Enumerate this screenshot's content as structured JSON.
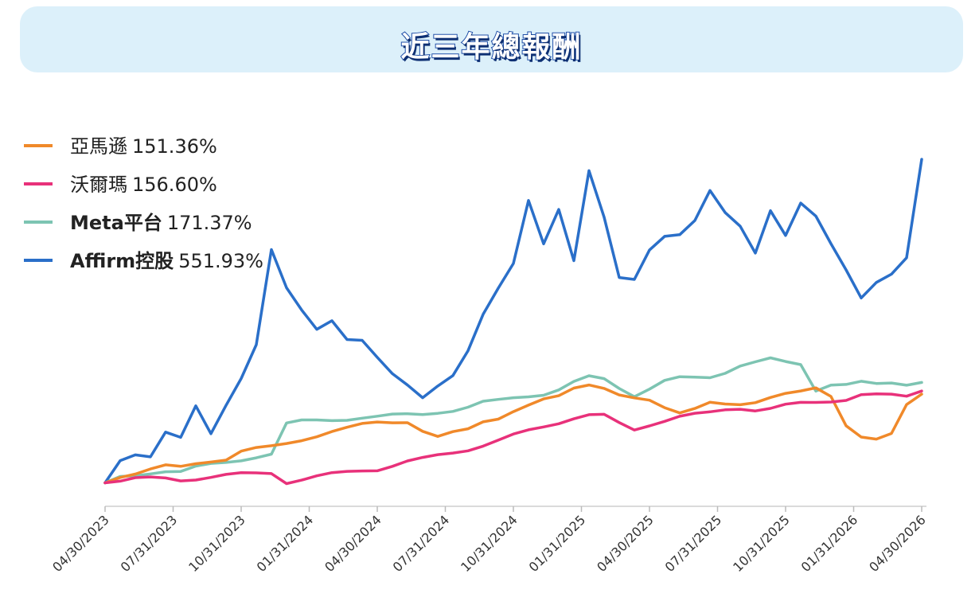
{
  "banner": {
    "title": "近三年總報酬"
  },
  "chart_data": {
    "type": "line",
    "title": "近三年總報酬",
    "xlabel": "",
    "ylabel": "",
    "x_ticks": [
      "04/30/2023",
      "07/31/2023",
      "10/31/2023",
      "01/31/2024",
      "04/30/2024",
      "07/31/2024",
      "10/31/2024",
      "01/31/2025",
      "04/30/2025",
      "07/31/2025",
      "10/31/2025",
      "01/31/2026",
      "04/30/2026"
    ],
    "ylim": [
      -40,
      620
    ],
    "grid": false,
    "legend_position": "top-left",
    "series": [
      {
        "name": "亞馬遜",
        "value_label": "151.36%",
        "color": "#f0892a",
        "values": [
          0,
          12,
          18,
          24,
          28,
          25,
          32,
          38,
          42,
          55,
          58,
          60,
          66,
          74,
          82,
          89,
          93,
          98,
          102,
          104,
          106,
          90,
          78,
          84,
          90,
          105,
          112,
          124,
          132,
          140,
          146,
          162,
          170,
          164,
          150,
          142,
          138,
          128,
          122,
          130,
          138,
          132,
          130,
          136,
          148,
          156,
          158,
          160,
          144,
          96,
          80,
          78,
          86,
          132,
          151.36
        ]
      },
      {
        "name": "沃爾瑪",
        "value_label": "156.60%",
        "color": "#e8317a",
        "values": [
          0,
          3,
          6,
          7,
          8,
          6,
          8,
          10,
          12,
          14,
          16,
          18,
          2,
          6,
          10,
          14,
          18,
          22,
          24,
          30,
          36,
          40,
          46,
          52,
          58,
          65,
          72,
          80,
          88,
          96,
          104,
          112,
          116,
          114,
          100,
          90,
          100,
          108,
          114,
          116,
          118,
          124,
          128,
          126,
          128,
          132,
          134,
          136,
          140,
          144,
          152,
          150,
          148,
          146,
          156.6
        ]
      },
      {
        "name": "Meta平台",
        "value_label": "171.37%",
        "color": "#7dc4b2",
        "values": [
          0,
          8,
          12,
          18,
          22,
          20,
          26,
          30,
          34,
          40,
          46,
          50,
          100,
          104,
          106,
          108,
          110,
          112,
          112,
          114,
          116,
          118,
          122,
          124,
          128,
          136,
          140,
          146,
          150,
          152,
          158,
          170,
          180,
          178,
          164,
          150,
          160,
          172,
          178,
          180,
          182,
          190,
          200,
          204,
          210,
          206,
          204,
          160,
          168,
          166,
          170,
          168,
          172,
          170,
          171.37
        ]
      },
      {
        "name": "Affirm控股",
        "value_label": "551.93%",
        "color": "#2a6fc9",
        "values": [
          0,
          45,
          55,
          45,
          80,
          70,
          130,
          90,
          140,
          180,
          230,
          390,
          330,
          300,
          270,
          280,
          240,
          235,
          210,
          190,
          175,
          150,
          162,
          175,
          220,
          290,
          340,
          380,
          480,
          400,
          460,
          380,
          540,
          460,
          350,
          340,
          390,
          420,
          430,
          455,
          500,
          455,
          430,
          390,
          470,
          430,
          480,
          450,
          400,
          360,
          320,
          350,
          360,
          380,
          551.93
        ]
      }
    ]
  }
}
